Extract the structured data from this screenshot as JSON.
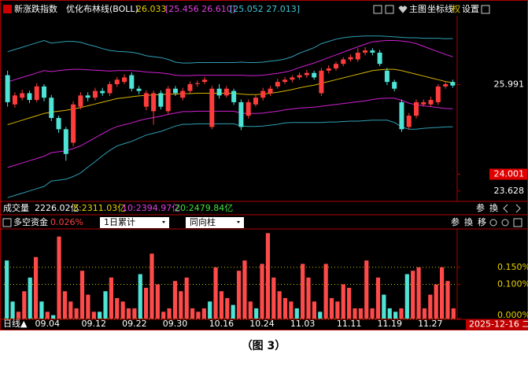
{
  "header": {
    "title": "新涨跌指数",
    "indicator": "优化布林线(BOLL)",
    "mid_value": "26.033",
    "inner_band": "[25.456 26.610]",
    "outer_band": "[25.052 27.013]",
    "tools": [
      "主图",
      "坐标线",
      "权",
      "设置"
    ]
  },
  "volume": {
    "label": "成交量",
    "total": "2226.02亿",
    "ma5": "5:2311.03亿",
    "ma10": "10:2394.97亿",
    "ma20": "20:2479.84亿",
    "tools": [
      "参",
      "換"
    ]
  },
  "fund_header": {
    "title": "多空资金",
    "value": "0.026%",
    "period": "1日累计",
    "mode": "同向柱",
    "tools": [
      "参",
      "換",
      "移"
    ]
  },
  "x_axis": {
    "period": "日线▲",
    "current_date": "2025-12-16 二"
  },
  "caption": "（图 3）",
  "chart_data": [
    {
      "type": "candlestick",
      "up_color": "#ff3c3c",
      "down_color": "#4fe3d6",
      "open": [
        26.2,
        25.55,
        25.7,
        25.8,
        25.65,
        25.95,
        25.7,
        25.25,
        25.0,
        24.7,
        25.5,
        25.75,
        25.7,
        25.85,
        25.8,
        26.0,
        26.05,
        26.2,
        25.9,
        25.5,
        25.4,
        25.8,
        25.4,
        25.9,
        25.7,
        25.85,
        26.0,
        26.05,
        25.05,
        25.9,
        25.75,
        25.85,
        25.6,
        25.3,
        25.55,
        25.7,
        25.8,
        25.95,
        26.05,
        26.1,
        26.15,
        26.2,
        26.25,
        25.8,
        26.3,
        26.35,
        26.45,
        26.55,
        26.55,
        26.7,
        26.75,
        26.7,
        26.3,
        26.05,
        25.6,
        25.05,
        25.3,
        25.55,
        25.55,
        25.6,
        25.95,
        26.05
      ],
      "high": [
        26.3,
        25.82,
        25.88,
        25.86,
        26.02,
        26.0,
        25.76,
        25.3,
        25.05,
        25.62,
        25.82,
        25.82,
        25.92,
        25.92,
        26.06,
        26.16,
        26.22,
        26.26,
        25.96,
        25.86,
        25.86,
        25.86,
        25.96,
        25.96,
        25.92,
        26.06,
        26.08,
        26.16,
        25.96,
        26.0,
        25.96,
        25.9,
        25.66,
        25.66,
        25.76,
        25.92,
        25.96,
        26.12,
        26.16,
        26.2,
        26.26,
        26.32,
        26.3,
        26.36,
        26.42,
        26.5,
        26.6,
        26.66,
        26.8,
        26.82,
        26.8,
        26.76,
        26.36,
        26.1,
        25.66,
        25.36,
        25.66,
        25.66,
        25.72,
        26.0,
        26.06,
        26.1
      ],
      "low": [
        25.5,
        25.48,
        25.64,
        25.58,
        25.6,
        25.62,
        25.18,
        24.92,
        24.3,
        24.62,
        25.44,
        25.62,
        25.64,
        25.74,
        25.74,
        25.94,
        26.0,
        25.84,
        25.78,
        25.42,
        25.1,
        25.44,
        25.34,
        25.74,
        25.64,
        25.8,
        25.94,
        26.0,
        25.0,
        25.68,
        25.7,
        25.54,
        24.98,
        25.24,
        25.5,
        25.64,
        25.74,
        25.9,
        26.0,
        26.04,
        26.1,
        26.14,
        26.1,
        25.74,
        26.24,
        26.3,
        26.4,
        26.5,
        26.5,
        26.64,
        26.64,
        26.4,
        25.98,
        25.84,
        24.94,
        25.0,
        25.24,
        25.5,
        25.5,
        25.54,
        25.9,
        25.92
      ],
      "close": [
        25.6,
        25.75,
        25.8,
        25.65,
        25.95,
        25.7,
        25.25,
        25.0,
        24.45,
        25.55,
        25.75,
        25.7,
        25.85,
        25.8,
        26.0,
        26.1,
        26.15,
        25.9,
        25.85,
        25.8,
        25.8,
        25.5,
        25.9,
        25.8,
        25.85,
        26.0,
        26.02,
        26.1,
        25.9,
        25.75,
        25.9,
        25.6,
        25.05,
        25.6,
        25.7,
        25.85,
        25.9,
        26.05,
        26.1,
        26.15,
        26.2,
        26.25,
        26.15,
        26.3,
        26.35,
        26.45,
        26.55,
        26.6,
        26.7,
        26.75,
        26.7,
        26.45,
        26.05,
        25.9,
        25.0,
        25.3,
        25.6,
        25.6,
        25.65,
        25.95,
        26.0,
        25.97
      ],
      "series": [
        {
          "color": "#2f9fb4",
          "values": [
            26.72,
            26.77,
            26.82,
            26.87,
            26.92,
            26.97,
            26.91,
            26.93,
            26.95,
            26.95,
            26.93,
            26.88,
            26.84,
            26.79,
            26.75,
            26.73,
            26.72,
            26.71,
            26.68,
            26.63,
            26.61,
            26.59,
            26.55,
            26.49,
            26.47,
            26.47,
            26.48,
            26.48,
            26.48,
            26.48,
            26.48,
            26.48,
            26.49,
            26.48,
            26.48,
            26.49,
            26.51,
            26.53,
            26.56,
            26.61,
            26.69,
            26.75,
            26.81,
            26.9,
            26.95,
            27.0,
            27.03,
            27.05,
            27.06,
            27.07,
            27.07,
            27.07,
            27.06,
            27.05,
            27.04,
            27.03,
            27.03,
            27.02,
            27.02,
            27.02,
            27.01,
            27.013
          ]
        },
        {
          "color": "#d020d0",
          "values": [
            26.05,
            26.1,
            26.15,
            26.2,
            26.25,
            26.3,
            26.28,
            26.3,
            26.32,
            26.33,
            26.33,
            26.32,
            26.31,
            26.3,
            26.29,
            26.3,
            26.3,
            26.3,
            26.29,
            26.27,
            26.26,
            26.25,
            26.23,
            26.2,
            26.19,
            26.19,
            26.2,
            26.2,
            26.2,
            26.2,
            26.2,
            26.2,
            26.2,
            26.19,
            26.19,
            26.2,
            26.22,
            26.24,
            26.27,
            26.31,
            26.37,
            26.42,
            26.47,
            26.53,
            26.59,
            26.65,
            26.71,
            26.77,
            26.83,
            26.89,
            26.94,
            26.96,
            26.97,
            26.97,
            26.96,
            26.94,
            26.9,
            26.84,
            26.78,
            26.72,
            26.66,
            26.61
          ]
        },
        {
          "color": "#d8b400",
          "values": [
            25.1,
            25.15,
            25.2,
            25.25,
            25.3,
            25.35,
            25.38,
            25.4,
            25.42,
            25.45,
            25.48,
            25.52,
            25.56,
            25.6,
            25.64,
            25.68,
            25.7,
            25.72,
            25.74,
            25.75,
            25.76,
            25.77,
            25.78,
            25.78,
            25.79,
            25.79,
            25.8,
            25.8,
            25.8,
            25.8,
            25.8,
            25.8,
            25.78,
            25.77,
            25.77,
            25.78,
            25.8,
            25.82,
            25.85,
            25.88,
            25.92,
            25.95,
            25.98,
            26.02,
            26.06,
            26.1,
            26.14,
            26.18,
            26.22,
            26.26,
            26.3,
            26.32,
            26.33,
            26.33,
            26.3,
            26.26,
            26.22,
            26.18,
            26.14,
            26.1,
            26.06,
            26.033
          ]
        },
        {
          "color": "#d020d0",
          "values": [
            24.15,
            24.2,
            24.25,
            24.3,
            24.35,
            24.4,
            24.48,
            24.5,
            24.52,
            24.57,
            24.63,
            24.72,
            24.81,
            24.9,
            24.99,
            25.06,
            25.1,
            25.14,
            25.19,
            25.23,
            25.26,
            25.29,
            25.33,
            25.36,
            25.39,
            25.39,
            25.4,
            25.4,
            25.4,
            25.4,
            25.4,
            25.4,
            25.36,
            25.35,
            25.35,
            25.36,
            25.38,
            25.4,
            25.43,
            25.45,
            25.47,
            25.48,
            25.49,
            25.51,
            25.53,
            25.55,
            25.57,
            25.59,
            25.61,
            25.63,
            25.66,
            25.68,
            25.69,
            25.69,
            25.64,
            25.58,
            25.54,
            25.52,
            25.5,
            25.48,
            25.46,
            25.456
          ]
        },
        {
          "color": "#2f9fb4",
          "values": [
            23.48,
            23.53,
            23.58,
            23.63,
            23.68,
            23.73,
            23.85,
            23.87,
            23.89,
            23.95,
            24.03,
            24.16,
            24.28,
            24.41,
            24.53,
            24.63,
            24.68,
            24.73,
            24.8,
            24.87,
            24.91,
            24.95,
            25.01,
            25.07,
            25.11,
            25.11,
            25.12,
            25.12,
            25.12,
            25.12,
            25.12,
            25.12,
            25.07,
            25.06,
            25.06,
            25.07,
            25.09,
            25.11,
            25.14,
            25.15,
            25.15,
            25.15,
            25.15,
            25.15,
            25.16,
            25.16,
            25.17,
            25.18,
            25.18,
            25.19,
            25.2,
            25.2,
            25.2,
            25.15,
            25.05,
            25.0,
            25.0,
            25.02,
            25.03,
            25.04,
            25.05,
            25.052
          ]
        }
      ],
      "ylim": [
        23.45,
        27.45
      ],
      "yticks": [
        25.991,
        24.001,
        23.628
      ],
      "highlight_ytick_index": 1,
      "highlight_color": "#e00000"
    },
    {
      "type": "bar",
      "categories": [
        null,
        null,
        null,
        null,
        null,
        null,
        null,
        "09.04",
        null,
        null,
        null,
        null,
        null,
        null,
        null,
        "09.12",
        null,
        null,
        null,
        null,
        null,
        null,
        "09.22",
        null,
        null,
        null,
        null,
        null,
        null,
        "09.30",
        null,
        null,
        null,
        null,
        null,
        null,
        null,
        "10.16",
        null,
        null,
        null,
        null,
        null,
        null,
        "10.24",
        null,
        null,
        null,
        null,
        null,
        null,
        "11.03",
        null,
        null,
        null,
        null,
        null,
        null,
        null,
        "11.11",
        null,
        null,
        null,
        null,
        null,
        null,
        "11.19",
        null,
        null,
        null,
        null,
        null,
        null,
        "11.27",
        null,
        null,
        null,
        null
      ],
      "values": [
        0.17,
        0.05,
        0.02,
        0.08,
        0.12,
        0.18,
        0.05,
        0.02,
        0.01,
        0.24,
        0.08,
        0.05,
        0.03,
        0.14,
        0.07,
        0.02,
        0.02,
        0.08,
        0.12,
        0.06,
        0.05,
        0.03,
        0.03,
        0.13,
        0.09,
        0.19,
        0.1,
        0.02,
        0.03,
        0.11,
        0.08,
        0.12,
        0.03,
        0.02,
        0.03,
        0.05,
        0.15,
        0.08,
        0.06,
        0.04,
        0.14,
        0.17,
        0.05,
        0.03,
        0.16,
        0.25,
        0.12,
        0.08,
        0.06,
        0.05,
        0.03,
        0.16,
        0.12,
        0.05,
        0.02,
        0.16,
        0.06,
        0.05,
        0.1,
        0.09,
        0.03,
        0.03,
        0.17,
        0.03,
        0.12,
        0.07,
        0.03,
        0.02,
        0.03,
        0.13,
        0.14,
        0.15,
        0.03,
        0.07,
        0.1,
        0.15,
        0.11,
        0.03
      ],
      "bar_colors": [
        "#4fe3d6",
        "#4fe3d6",
        "#ff4a4a",
        "#ff4a4a",
        "#4fe3d6",
        "#ff4a4a",
        "#4fe3d6",
        "#ff4a4a",
        "#4fe3d6",
        "#ff4a4a",
        "#ff4a4a",
        "#ff4a4a",
        "#ff4a4a",
        "#ff4a4a",
        "#ff4a4a",
        "#ff4a4a",
        "#4fe3d6",
        "#4fe3d6",
        "#ff4a4a",
        "#ff4a4a",
        "#ff4a4a",
        "#ff4a4a",
        "#ff4a4a",
        "#4fe3d6",
        "#ff4a4a",
        "#ff4a4a",
        "#ff4a4a",
        "#ff4a4a",
        "#ff4a4a",
        "#ff4a4a",
        "#ff4a4a",
        "#ff4a4a",
        "#ff4a4a",
        "#ff4a4a",
        "#ff4a4a",
        "#4fe3d6",
        "#ff4a4a",
        "#ff4a4a",
        "#ff4a4a",
        "#4fe3d6",
        "#ff4a4a",
        "#ff4a4a",
        "#ff4a4a",
        "#4fe3d6",
        "#ff4a4a",
        "#ff4a4a",
        "#ff4a4a",
        "#ff4a4a",
        "#ff4a4a",
        "#ff4a4a",
        "#4fe3d6",
        "#ff4a4a",
        "#ff4a4a",
        "#ff4a4a",
        "#4fe3d6",
        "#ff4a4a",
        "#ff4a4a",
        "#ff4a4a",
        "#ff4a4a",
        "#ff4a4a",
        "#ff4a4a",
        "#ff4a4a",
        "#ff4a4a",
        "#ff4a4a",
        "#ff4a4a",
        "#4fe3d6",
        "#4fe3d6",
        "#4fe3d6",
        "#ff4a4a",
        "#4fe3d6",
        "#ff4a4a",
        "#ff4a4a",
        "#ff4a4a",
        "#ff4a4a",
        "#ff4a4a",
        "#ff4a4a",
        "#ff4a4a",
        "#ff4a4a"
      ],
      "ylim": [
        0,
        0.26
      ],
      "yticks": [
        {
          "value": 0.15,
          "label": "0.150%"
        },
        {
          "value": 0.1,
          "label": "0.100%"
        },
        {
          "value": 0,
          "label": "0.000%"
        }
      ],
      "grid": true,
      "grid_color": "#c8c800",
      "tick_color": "#e8d000"
    }
  ]
}
